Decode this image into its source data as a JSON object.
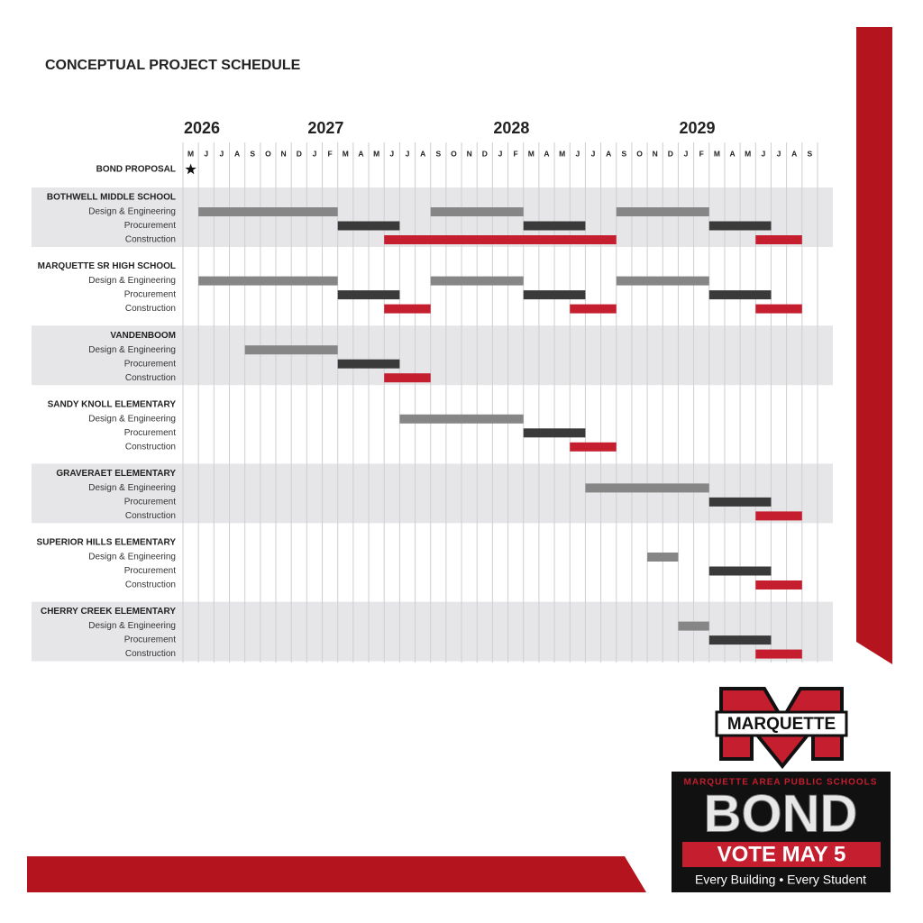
{
  "chart_data": {
    "type": "gantt",
    "title": "CONCEPTUAL PROJECT SCHEDULE",
    "years": [
      {
        "label": "2026",
        "col": 0
      },
      {
        "label": "2027",
        "col": 8
      },
      {
        "label": "2028",
        "col": 20
      },
      {
        "label": "2029",
        "col": 32
      }
    ],
    "months": [
      "M",
      "J",
      "J",
      "A",
      "S",
      "O",
      "N",
      "D",
      "J",
      "F",
      "M",
      "A",
      "M",
      "J",
      "J",
      "A",
      "S",
      "O",
      "N",
      "D",
      "J",
      "F",
      "M",
      "A",
      "M",
      "J",
      "J",
      "A",
      "S",
      "O",
      "N",
      "D",
      "J",
      "F",
      "M",
      "A",
      "M",
      "J",
      "J",
      "A",
      "S"
    ],
    "milestone": {
      "label": "BOND PROPOSAL",
      "col": 0
    },
    "projects": [
      {
        "name": "BOTHWELL MIDDLE SCHOOL",
        "tasks": [
          {
            "label": "Design & Engineering",
            "color": "#868686",
            "segments": [
              [
                1,
                10
              ],
              [
                16,
                22
              ],
              [
                28,
                34
              ]
            ]
          },
          {
            "label": "Procurement",
            "color": "#3a3a3a",
            "segments": [
              [
                10,
                14
              ],
              [
                22,
                26
              ],
              [
                34,
                38
              ]
            ]
          },
          {
            "label": "Construction",
            "color": "#c41e2f",
            "segments": [
              [
                13,
                28
              ],
              [
                37,
                40
              ]
            ]
          }
        ]
      },
      {
        "name": "MARQUETTE SR HIGH SCHOOL",
        "tasks": [
          {
            "label": "Design & Engineering",
            "color": "#868686",
            "segments": [
              [
                1,
                10
              ],
              [
                16,
                22
              ],
              [
                28,
                34
              ]
            ]
          },
          {
            "label": "Procurement",
            "color": "#3a3a3a",
            "segments": [
              [
                10,
                14
              ],
              [
                22,
                26
              ],
              [
                34,
                38
              ]
            ]
          },
          {
            "label": "Construction",
            "color": "#c41e2f",
            "segments": [
              [
                13,
                16
              ],
              [
                25,
                28
              ],
              [
                37,
                40
              ]
            ]
          }
        ]
      },
      {
        "name": "VANDENBOOM",
        "tasks": [
          {
            "label": "Design & Engineering",
            "color": "#868686",
            "segments": [
              [
                4,
                10
              ]
            ]
          },
          {
            "label": "Procurement",
            "color": "#3a3a3a",
            "segments": [
              [
                10,
                14
              ]
            ]
          },
          {
            "label": "Construction",
            "color": "#c41e2f",
            "segments": [
              [
                13,
                16
              ]
            ]
          }
        ]
      },
      {
        "name": "SANDY KNOLL ELEMENTARY",
        "tasks": [
          {
            "label": "Design & Engineering",
            "color": "#868686",
            "segments": [
              [
                14,
                22
              ]
            ]
          },
          {
            "label": "Procurement",
            "color": "#3a3a3a",
            "segments": [
              [
                22,
                26
              ]
            ]
          },
          {
            "label": "Construction",
            "color": "#c41e2f",
            "segments": [
              [
                25,
                28
              ]
            ]
          }
        ]
      },
      {
        "name": "GRAVERAET ELEMENTARY",
        "tasks": [
          {
            "label": "Design & Engineering",
            "color": "#868686",
            "segments": [
              [
                26,
                34
              ]
            ]
          },
          {
            "label": "Procurement",
            "color": "#3a3a3a",
            "segments": [
              [
                34,
                38
              ]
            ]
          },
          {
            "label": "Construction",
            "color": "#c41e2f",
            "segments": [
              [
                37,
                40
              ]
            ]
          }
        ]
      },
      {
        "name": "SUPERIOR HILLS ELEMENTARY",
        "tasks": [
          {
            "label": "Design & Engineering",
            "color": "#868686",
            "segments": [
              [
                30,
                32
              ]
            ]
          },
          {
            "label": "Procurement",
            "color": "#3a3a3a",
            "segments": [
              [
                34,
                38
              ]
            ]
          },
          {
            "label": "Construction",
            "color": "#c41e2f",
            "segments": [
              [
                37,
                40
              ]
            ]
          }
        ]
      },
      {
        "name": "CHERRY CREEK ELEMENTARY",
        "tasks": [
          {
            "label": "Design & Engineering",
            "color": "#868686",
            "segments": [
              [
                32,
                34
              ]
            ]
          },
          {
            "label": "Procurement",
            "color": "#3a3a3a",
            "segments": [
              [
                34,
                38
              ]
            ]
          },
          {
            "label": "Construction",
            "color": "#c41e2f",
            "segments": [
              [
                37,
                40
              ]
            ]
          }
        ]
      }
    ]
  },
  "logo": {
    "mark": "MARQUETTE",
    "district": "MARQUETTE AREA PUBLIC SCHOOLS",
    "word": "BOND",
    "vote": "VOTE MAY 5",
    "tagline": "Every Building • Every Student"
  }
}
